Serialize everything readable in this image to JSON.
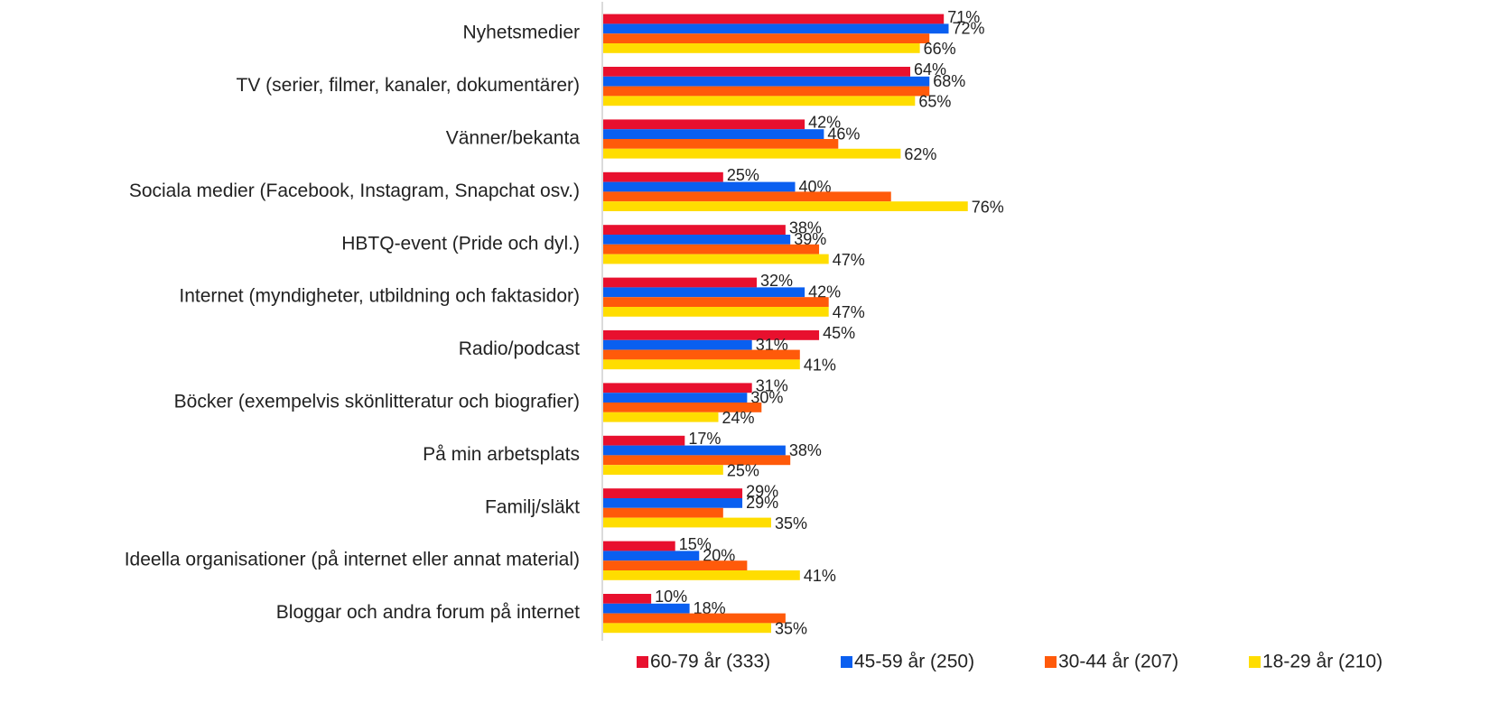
{
  "chart_data": {
    "type": "bar",
    "orientation": "horizontal",
    "categories": [
      "Nyhetsmedier",
      "TV (serier, filmer, kanaler, dokumentärer)",
      "Vänner/bekanta",
      "Sociala medier (Facebook, Instagram, Snapchat osv.)",
      "HBTQ-event (Pride och dyl.)",
      "Internet (myndigheter, utbildning och faktasidor)",
      "Radio/podcast",
      "Böcker (exempelvis skönlitteratur och biografier)",
      "På min arbetsplats",
      "Familj/släkt",
      "Ideella organisationer (på internet eller annat material)",
      "Bloggar och andra forum på internet"
    ],
    "series": [
      {
        "name": "60-79 år (333)",
        "color": "#e8102e",
        "values": [
          71,
          64,
          42,
          25,
          38,
          32,
          45,
          31,
          17,
          29,
          15,
          10
        ],
        "value_labels": [
          "71%",
          "64%",
          "42%",
          "25%",
          "38%",
          "32%",
          "45%",
          "31%",
          "17%",
          "29%",
          "15%",
          "10%"
        ]
      },
      {
        "name": "45-59 år (250)",
        "color": "#0a5ff0",
        "values": [
          72,
          68,
          46,
          40,
          39,
          42,
          31,
          30,
          38,
          29,
          20,
          18
        ],
        "value_labels": [
          "72%",
          "68%",
          "46%",
          "40%",
          "39%",
          "42%",
          "31%",
          "30%",
          "38%",
          "29%",
          "20%",
          "18%"
        ]
      },
      {
        "name": "30-44 år (207)",
        "color": "#ff5a0a",
        "values": [
          68,
          68,
          49,
          60,
          45,
          47,
          41,
          33,
          39,
          25,
          30,
          38
        ]
      },
      {
        "name": "18-29 år (210)",
        "color": "#ffdd00",
        "values": [
          66,
          65,
          62,
          76,
          47,
          47,
          41,
          24,
          25,
          35,
          41,
          35
        ],
        "value_labels": [
          "66%",
          "65%",
          "62%",
          "76%",
          "47%",
          "47%",
          "41%",
          "24%",
          "25%",
          "35%",
          "41%",
          "35%"
        ]
      }
    ],
    "xlim": [
      0,
      80
    ],
    "legend": "bottom"
  }
}
